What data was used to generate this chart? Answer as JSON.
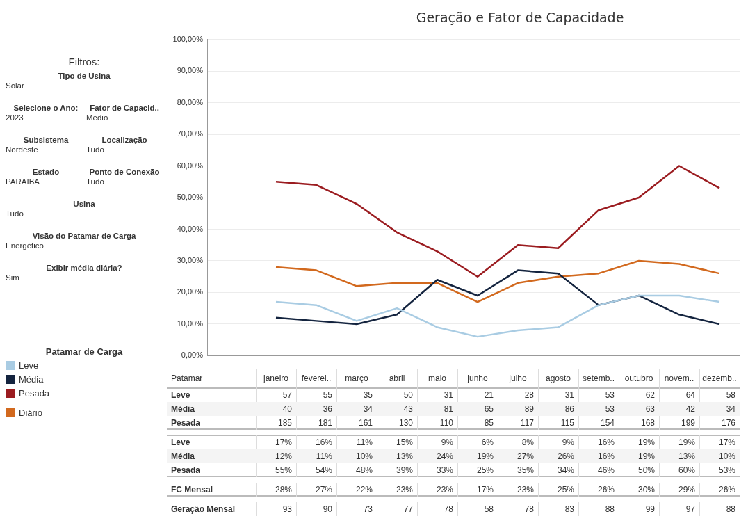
{
  "chart_data": [
    {
      "type": "line",
      "title": "Geração e Fator de Capacidade",
      "xlabel": "Patamar",
      "legend_title": "Patamar de Carga",
      "legend": "left",
      "grid": "y",
      "marker": "none",
      "line_style": "solid",
      "categories": [
        "janeiro",
        "feverei..",
        "março",
        "abril",
        "maio",
        "junho",
        "julho",
        "agosto",
        "setemb..",
        "outubro",
        "novem..",
        "dezemb.."
      ],
      "ylim": [
        0,
        100
      ],
      "yticks": [
        {
          "value": 0,
          "label": "0,00%"
        },
        {
          "value": 10,
          "label": "10,00%"
        },
        {
          "value": 20,
          "label": "20,00%"
        },
        {
          "value": 30,
          "label": "30,00%"
        },
        {
          "value": 40,
          "label": "40,00%"
        },
        {
          "value": 50,
          "label": "50,00%"
        },
        {
          "value": 60,
          "label": "60,00%"
        },
        {
          "value": 70,
          "label": "70,00%"
        },
        {
          "value": 80,
          "label": "80,00%"
        },
        {
          "value": 90,
          "label": "90,00%"
        },
        {
          "value": 100,
          "label": "100,00%"
        }
      ],
      "annotations": [
        "FC Mensal"
      ],
      "series": [
        {
          "name": "Leve",
          "color": "#a9cce3",
          "values": [
            17,
            16,
            11,
            15,
            9,
            6,
            8,
            9,
            16,
            19,
            19,
            17
          ],
          "value_labels": [
            "17%",
            "16%",
            "11%",
            "15%",
            "9%",
            "6%",
            "8%",
            "9%",
            "16%",
            "19%",
            "19%",
            "17%"
          ]
        },
        {
          "name": "Média",
          "color": "#14243f",
          "values": [
            12,
            11,
            10,
            13,
            24,
            19,
            27,
            26,
            16,
            19,
            13,
            10
          ],
          "value_labels": [
            "12%",
            "11%",
            "10%",
            "13%",
            "24%",
            "19%",
            "27%",
            "26%",
            "16%",
            "19%",
            "13%",
            "10%"
          ]
        },
        {
          "name": "Pesada",
          "color": "#9b1c20",
          "values": [
            55,
            54,
            48,
            39,
            33,
            25,
            35,
            34,
            46,
            50,
            60,
            53
          ],
          "value_labels": [
            "55%",
            "54%",
            "48%",
            "39%",
            "33%",
            "25%",
            "35%",
            "34%",
            "46%",
            "50%",
            "60%",
            "53%"
          ]
        },
        {
          "name": "Diário",
          "color": "#d2691e",
          "values": [
            28,
            27,
            22,
            23,
            23,
            17,
            23,
            25,
            26,
            30,
            29,
            26
          ],
          "value_labels": [
            "28%",
            "27%",
            "22%",
            "23%",
            "23%",
            "17%",
            "23%",
            "25%",
            "26%",
            "30%",
            "29%",
            "26%"
          ]
        }
      ]
    },
    {
      "type": "heatmap",
      "data_labels": true,
      "categories": [
        null,
        null,
        null,
        null,
        null,
        null,
        null,
        null,
        null,
        null,
        null,
        null
      ],
      "y_categories": [
        "Leve",
        "Média",
        "Pesada"
      ],
      "cells": [
        [
          57,
          55,
          35,
          50,
          31,
          21,
          28,
          31,
          53,
          62,
          64,
          58
        ],
        [
          40,
          36,
          34,
          43,
          81,
          65,
          89,
          86,
          53,
          63,
          42,
          34
        ],
        [
          185,
          181,
          161,
          130,
          110,
          85,
          117,
          115,
          154,
          168,
          199,
          176
        ]
      ]
    },
    {
      "type": "heatmap",
      "data_labels": true,
      "categories": [
        null,
        null,
        null,
        null,
        null,
        null,
        null,
        null,
        null,
        null,
        null,
        null
      ],
      "y_categories": [
        "Geração Mensal"
      ],
      "cells": [
        [
          93,
          90,
          73,
          77,
          78,
          58,
          78,
          83,
          88,
          99,
          97,
          88
        ]
      ]
    },
    {
      "type": "other",
      "title": "Filtros:",
      "annotations": [
        "Tipo de Usina",
        "Solar",
        "Selecione o Ano:",
        "2023",
        "Fator de Capacid..",
        "Médio",
        "Subsistema",
        "Nordeste",
        "Localização",
        "Tudo",
        "Estado",
        "PARAIBA",
        "Ponto de Conexão",
        "Tudo",
        "Usina",
        "Tudo",
        "Visão do Patamar de Carga",
        "Energético",
        "Exibir média diária?",
        "Sim"
      ]
    }
  ]
}
